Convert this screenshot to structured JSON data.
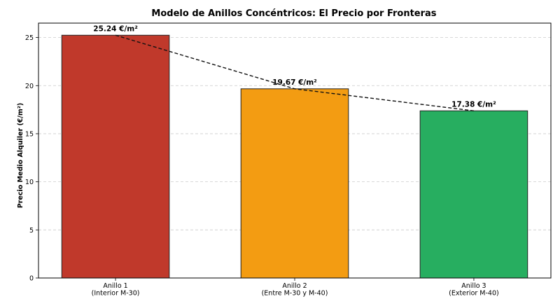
{
  "chart_data": {
    "type": "bar",
    "title": "Modelo de Anillos Concéntricos: El Precio por Fronteras",
    "xlabel": "",
    "ylabel": "Precio Medio Alquiler (€/m²)",
    "categories": [
      [
        "Anillo 1",
        "(Interior M-30)"
      ],
      [
        "Anillo 2",
        "(Entre M-30 y M-40)"
      ],
      [
        "Anillo 3",
        "(Exterior M-40)"
      ]
    ],
    "values": [
      25.24,
      19.67,
      17.38
    ],
    "data_labels": [
      "25.24 €/m²",
      "19.67 €/m²",
      "17.38 €/m²"
    ],
    "colors": [
      "#c0392b",
      "#f39c12",
      "#27ae60"
    ],
    "ylim": [
      0,
      26.5
    ],
    "yticks": [
      0,
      5,
      10,
      15,
      20,
      25
    ],
    "grid": "y-dashed",
    "trend_line": "dashed",
    "legend": "none"
  }
}
